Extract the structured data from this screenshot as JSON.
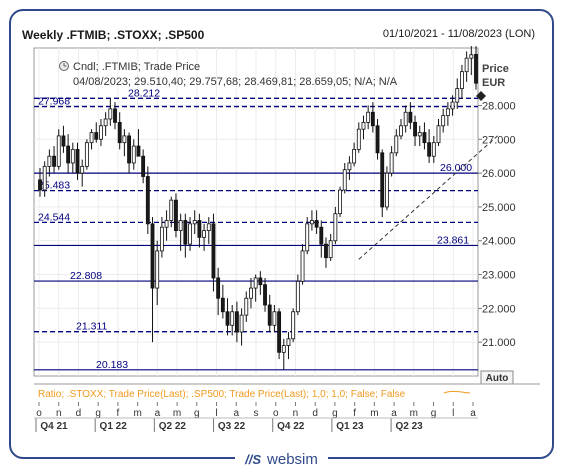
{
  "header": {
    "title": "Weekly .FTMIB; .STOXX; .SP500",
    "date_range": "01/10/2021 - 11/08/2023 (LON)"
  },
  "info": {
    "line1": "Cndl; .FTMIB; Trade Price",
    "line2": "04/08/2023; 29.510,40; 29.757,68; 28.469,81; 28.659,05; N/A; N/A"
  },
  "axis": {
    "price_label": "Price",
    "currency_label": "EUR",
    "auto_button": "Auto"
  },
  "ratio_legend": "Ratio; .STOXX; Trade Price(Last); .SP500; Trade Price(Last);  1,0; 1,0; False; False",
  "brand": {
    "name": "websim",
    "icon_text": "//S"
  },
  "colors": {
    "up": "#ffffff",
    "down": "#1a1a1a",
    "hline": "#00007f",
    "axis": "#555555",
    "ratio": "#f5a020",
    "frame": "#2f4a8a"
  },
  "chart_data": {
    "type": "candlestick",
    "instrument": ".FTMIB",
    "yaxis_unit": "EUR",
    "yticks": [
      21000,
      22000,
      23000,
      24000,
      25000,
      26000,
      27000,
      28000
    ],
    "ytick_labels": [
      "21.000",
      "22.000",
      "23.000",
      "24.000",
      "25.000",
      "26.000",
      "27.000",
      "28.000"
    ],
    "month_letters": [
      "o",
      "n",
      "d",
      "g",
      "f",
      "m",
      "a",
      "m",
      "g",
      "l",
      "a",
      "s",
      "o",
      "n",
      "d",
      "g",
      "f",
      "m",
      "a",
      "m",
      "g",
      "l",
      "a"
    ],
    "quarter_labels": [
      "Q4 21",
      "Q1 22",
      "Q2 22",
      "Q3 22",
      "Q4 22",
      "Q1 23",
      "Q2 23"
    ],
    "levels": [
      {
        "value": 28212,
        "label": "28.212",
        "style": "dashed"
      },
      {
        "value": 27968,
        "label": "27.968",
        "style": "dashed"
      },
      {
        "value": 26000,
        "label": "26.000",
        "style": "solid"
      },
      {
        "value": 25483,
        "label": "25.483",
        "style": "dashed"
      },
      {
        "value": 24544,
        "label": "24.544",
        "style": "dashed"
      },
      {
        "value": 23861,
        "label": "23.861",
        "style": "solid"
      },
      {
        "value": 22808,
        "label": "22.808",
        "style": "solid"
      },
      {
        "value": 21311,
        "label": "21.311",
        "style": "dashed"
      },
      {
        "value": 20183,
        "label": "20.183",
        "style": "solid"
      }
    ],
    "candles": [
      [
        25800,
        26150,
        25300,
        25500
      ],
      [
        25500,
        26350,
        25300,
        26200
      ],
      [
        26200,
        26700,
        25900,
        26500
      ],
      [
        26500,
        26800,
        26000,
        26200
      ],
      [
        26200,
        27300,
        26100,
        27100
      ],
      [
        27100,
        27400,
        26600,
        26800
      ],
      [
        26800,
        27150,
        26000,
        26300
      ],
      [
        26300,
        26900,
        26000,
        26700
      ],
      [
        26700,
        26900,
        25800,
        26000
      ],
      [
        26000,
        26400,
        25600,
        26200
      ],
      [
        26200,
        27000,
        26100,
        26900
      ],
      [
        26900,
        27300,
        26700,
        27200
      ],
      [
        27200,
        27500,
        26900,
        27000
      ],
      [
        27000,
        27600,
        26800,
        27400
      ],
      [
        27400,
        27800,
        27100,
        27600
      ],
      [
        27600,
        28212,
        27400,
        27900
      ],
      [
        27900,
        28100,
        27300,
        27500
      ],
      [
        27500,
        27800,
        26700,
        26900
      ],
      [
        26900,
        27300,
        26500,
        27100
      ],
      [
        27100,
        27200,
        26000,
        26300
      ],
      [
        26300,
        27000,
        26100,
        26800
      ],
      [
        26800,
        27300,
        26500,
        26500
      ],
      [
        26500,
        26700,
        25700,
        25900
      ],
      [
        25900,
        26200,
        24200,
        24500
      ],
      [
        24500,
        24700,
        21000,
        22600
      ],
      [
        22600,
        24000,
        22100,
        23700
      ],
      [
        23700,
        24700,
        23500,
        24400
      ],
      [
        24400,
        24900,
        24000,
        24600
      ],
      [
        24600,
        25300,
        24400,
        25200
      ],
      [
        25200,
        25400,
        24100,
        24300
      ],
      [
        24300,
        24800,
        23700,
        24600
      ],
      [
        24600,
        24800,
        23500,
        23900
      ],
      [
        23900,
        24700,
        23700,
        24500
      ],
      [
        24500,
        24900,
        24200,
        24600
      ],
      [
        24600,
        24800,
        23800,
        24100
      ],
      [
        24100,
        24500,
        23700,
        24300
      ],
      [
        24300,
        24700,
        23900,
        24500
      ],
      [
        24500,
        24800,
        22500,
        22900
      ],
      [
        22900,
        23200,
        21800,
        22300
      ],
      [
        22300,
        22700,
        21700,
        21900
      ],
      [
        21900,
        22300,
        21200,
        21500
      ],
      [
        21500,
        22100,
        21200,
        21900
      ],
      [
        21900,
        22200,
        21000,
        21300
      ],
      [
        21300,
        22000,
        20900,
        21800
      ],
      [
        21800,
        22500,
        21600,
        22300
      ],
      [
        22300,
        22900,
        22000,
        22600
      ],
      [
        22600,
        23000,
        22200,
        22900
      ],
      [
        22900,
        23100,
        22400,
        22700
      ],
      [
        22700,
        22900,
        21900,
        22100
      ],
      [
        22100,
        22400,
        21300,
        21500
      ],
      [
        21500,
        22100,
        21300,
        21900
      ],
      [
        21900,
        22000,
        20500,
        20700
      ],
      [
        20700,
        21100,
        20183,
        20900
      ],
      [
        20900,
        21300,
        20500,
        21100
      ],
      [
        21100,
        22000,
        21000,
        21900
      ],
      [
        21900,
        23000,
        21800,
        22800
      ],
      [
        22800,
        23900,
        22700,
        23700
      ],
      [
        23700,
        24700,
        23600,
        24500
      ],
      [
        24500,
        24900,
        24300,
        24600
      ],
      [
        24600,
        24900,
        24200,
        24400
      ],
      [
        24400,
        24600,
        23500,
        23900
      ],
      [
        23900,
        24100,
        23200,
        23500
      ],
      [
        23500,
        24200,
        23400,
        24000
      ],
      [
        24000,
        25000,
        23900,
        24800
      ],
      [
        24800,
        25600,
        24700,
        25500
      ],
      [
        25500,
        26300,
        25400,
        26100
      ],
      [
        26100,
        26500,
        25800,
        26300
      ],
      [
        26300,
        26900,
        26200,
        26700
      ],
      [
        26700,
        27500,
        26600,
        27300
      ],
      [
        27300,
        27700,
        27000,
        27500
      ],
      [
        27500,
        28000,
        27300,
        27800
      ],
      [
        27800,
        28100,
        27200,
        27400
      ],
      [
        27400,
        27600,
        26400,
        26600
      ],
      [
        26600,
        26700,
        24700,
        25000
      ],
      [
        25000,
        26200,
        24900,
        26000
      ],
      [
        26000,
        26800,
        25900,
        26600
      ],
      [
        26600,
        27300,
        26500,
        27100
      ],
      [
        27100,
        27600,
        27000,
        27400
      ],
      [
        27400,
        28000,
        27200,
        27800
      ],
      [
        27800,
        28100,
        27300,
        27500
      ],
      [
        27500,
        27700,
        26800,
        27100
      ],
      [
        27100,
        27400,
        26800,
        27200
      ],
      [
        27200,
        27500,
        26700,
        26900
      ],
      [
        26900,
        27300,
        26300,
        26500
      ],
      [
        26500,
        27100,
        26300,
        26900
      ],
      [
        26900,
        27600,
        26800,
        27400
      ],
      [
        27400,
        27900,
        27200,
        27700
      ],
      [
        27700,
        28100,
        27400,
        27900
      ],
      [
        27900,
        28300,
        27700,
        28100
      ],
      [
        28100,
        28800,
        27900,
        28500
      ],
      [
        28500,
        29200,
        28200,
        29000
      ],
      [
        29000,
        29600,
        28700,
        29400
      ],
      [
        29400,
        29757,
        28900,
        29500
      ],
      [
        29510,
        29757,
        28470,
        28659
      ]
    ],
    "trendline": {
      "from_week": 68,
      "from_value": 23450,
      "to_week": 98,
      "to_value": 27150,
      "style": "dashed"
    },
    "last_close": 28659,
    "yrange": [
      20000,
      29700
    ]
  }
}
